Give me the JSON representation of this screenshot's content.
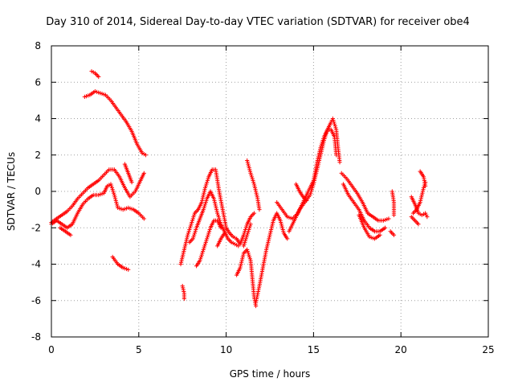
{
  "chart_data": {
    "type": "scatter",
    "title": "Day 310 of 2014, Sidereal Day-to-day VTEC variation (SDTVAR) for receiver obe4",
    "xlabel": "GPS time / hours",
    "ylabel": "SDTVAR / TECUs",
    "xlim": [
      0,
      25
    ],
    "ylim": [
      -8,
      8
    ],
    "x_ticks": [
      0,
      5,
      10,
      15,
      20,
      25
    ],
    "x_tick_labels": [
      "0",
      "5",
      "10",
      "15",
      "20",
      "25"
    ],
    "y_ticks": [
      -8,
      -6,
      -4,
      -2,
      0,
      2,
      4,
      6,
      8
    ],
    "y_tick_labels": [
      "-8",
      "-6",
      "-4",
      "-2",
      "0",
      "2",
      "4",
      "6",
      "8"
    ],
    "grid": true,
    "marker": "+",
    "color": "#ff0000",
    "series_segments": [
      [
        [
          0.0,
          -1.7
        ],
        [
          0.3,
          -1.5
        ],
        [
          0.6,
          -1.3
        ],
        [
          0.9,
          -1.1
        ],
        [
          1.2,
          -0.8
        ],
        [
          1.5,
          -0.4
        ],
        [
          1.8,
          -0.1
        ],
        [
          2.1,
          0.2
        ],
        [
          2.4,
          0.4
        ],
        [
          2.7,
          0.6
        ],
        [
          3.0,
          0.9
        ],
        [
          3.3,
          1.2
        ],
        [
          3.6,
          1.2
        ],
        [
          3.9,
          0.8
        ],
        [
          4.2,
          0.2
        ],
        [
          4.5,
          -0.3
        ],
        [
          4.8,
          0.0
        ],
        [
          5.1,
          0.6
        ],
        [
          5.3,
          1.0
        ]
      ],
      [
        [
          0.0,
          -1.8
        ],
        [
          0.3,
          -1.6
        ],
        [
          0.6,
          -1.8
        ],
        [
          0.9,
          -2.0
        ],
        [
          1.2,
          -1.8
        ],
        [
          1.5,
          -1.2
        ],
        [
          1.8,
          -0.7
        ],
        [
          2.1,
          -0.4
        ],
        [
          2.4,
          -0.2
        ],
        [
          2.7,
          -0.2
        ],
        [
          3.0,
          -0.1
        ],
        [
          3.2,
          0.3
        ],
        [
          3.4,
          0.4
        ],
        [
          3.6,
          -0.2
        ],
        [
          3.8,
          -0.9
        ],
        [
          4.1,
          -1.0
        ],
        [
          4.4,
          -0.9
        ],
        [
          4.7,
          -1.0
        ],
        [
          5.0,
          -1.2
        ],
        [
          5.3,
          -1.5
        ]
      ],
      [
        [
          0.5,
          -2.0
        ],
        [
          0.8,
          -2.2
        ],
        [
          1.1,
          -2.4
        ]
      ],
      [
        [
          1.9,
          5.2
        ],
        [
          2.2,
          5.3
        ],
        [
          2.5,
          5.5
        ],
        [
          2.8,
          5.4
        ],
        [
          3.1,
          5.3
        ],
        [
          3.4,
          5.0
        ],
        [
          3.7,
          4.6
        ],
        [
          4.0,
          4.2
        ],
        [
          4.3,
          3.8
        ],
        [
          4.6,
          3.3
        ],
        [
          4.9,
          2.6
        ],
        [
          5.2,
          2.1
        ],
        [
          5.4,
          2.0
        ]
      ],
      [
        [
          2.3,
          6.6
        ],
        [
          2.5,
          6.5
        ],
        [
          2.7,
          6.3
        ]
      ],
      [
        [
          3.5,
          -3.6
        ],
        [
          3.8,
          -4.0
        ],
        [
          4.1,
          -4.2
        ],
        [
          4.4,
          -4.3
        ]
      ],
      [
        [
          4.2,
          1.5
        ],
        [
          4.4,
          1.0
        ],
        [
          4.6,
          0.5
        ]
      ],
      [
        [
          7.5,
          -5.2
        ],
        [
          7.6,
          -5.6
        ],
        [
          7.6,
          -5.9
        ]
      ],
      [
        [
          7.4,
          -4.0
        ],
        [
          7.6,
          -3.2
        ],
        [
          7.8,
          -2.4
        ],
        [
          8.0,
          -1.8
        ],
        [
          8.2,
          -1.2
        ],
        [
          8.4,
          -1.0
        ],
        [
          8.6,
          -0.6
        ],
        [
          8.8,
          0.2
        ],
        [
          9.0,
          0.8
        ],
        [
          9.2,
          1.2
        ],
        [
          9.4,
          1.2
        ],
        [
          9.6,
          0.0
        ],
        [
          9.8,
          -1.0
        ],
        [
          10.0,
          -2.0
        ],
        [
          10.2,
          -2.3
        ],
        [
          10.4,
          -2.5
        ],
        [
          10.6,
          -2.6
        ],
        [
          10.8,
          -2.9
        ],
        [
          11.0,
          -2.4
        ],
        [
          11.2,
          -1.8
        ],
        [
          11.4,
          -1.4
        ],
        [
          11.6,
          -1.2
        ]
      ],
      [
        [
          7.9,
          -2.8
        ],
        [
          8.1,
          -2.6
        ],
        [
          8.3,
          -2.0
        ],
        [
          8.5,
          -1.5
        ],
        [
          8.7,
          -1.0
        ],
        [
          8.9,
          -0.4
        ],
        [
          9.1,
          0.0
        ],
        [
          9.3,
          -0.4
        ],
        [
          9.5,
          -1.2
        ],
        [
          9.7,
          -1.8
        ],
        [
          9.9,
          -2.2
        ],
        [
          10.1,
          -2.6
        ],
        [
          10.3,
          -2.8
        ],
        [
          10.5,
          -2.9
        ],
        [
          10.7,
          -3.0
        ]
      ],
      [
        [
          8.3,
          -4.1
        ],
        [
          8.5,
          -3.8
        ],
        [
          8.7,
          -3.2
        ],
        [
          8.9,
          -2.6
        ],
        [
          9.1,
          -2.0
        ],
        [
          9.3,
          -1.6
        ],
        [
          9.5,
          -1.6
        ],
        [
          9.7,
          -2.0
        ]
      ],
      [
        [
          9.5,
          -3.0
        ],
        [
          9.7,
          -2.6
        ],
        [
          9.9,
          -2.3
        ]
      ],
      [
        [
          10.6,
          -4.6
        ],
        [
          10.8,
          -4.2
        ],
        [
          11.0,
          -3.4
        ],
        [
          11.2,
          -3.2
        ],
        [
          11.4,
          -3.8
        ],
        [
          11.5,
          -4.8
        ],
        [
          11.6,
          -5.8
        ],
        [
          11.7,
          -6.3
        ]
      ],
      [
        [
          11.7,
          -6.1
        ],
        [
          11.9,
          -5.2
        ],
        [
          12.1,
          -4.2
        ],
        [
          12.3,
          -3.2
        ],
        [
          12.5,
          -2.4
        ],
        [
          12.7,
          -1.6
        ],
        [
          12.9,
          -1.2
        ],
        [
          13.1,
          -1.6
        ],
        [
          13.3,
          -2.3
        ],
        [
          13.5,
          -2.6
        ]
      ],
      [
        [
          11.2,
          1.7
        ],
        [
          11.4,
          1.0
        ],
        [
          11.6,
          0.4
        ],
        [
          11.8,
          -0.4
        ],
        [
          11.9,
          -1.0
        ]
      ],
      [
        [
          11.0,
          -3.0
        ],
        [
          11.2,
          -2.4
        ],
        [
          11.4,
          -1.8
        ]
      ],
      [
        [
          12.9,
          -0.6
        ],
        [
          13.2,
          -1.0
        ],
        [
          13.5,
          -1.4
        ],
        [
          13.8,
          -1.5
        ],
        [
          14.1,
          -1.2
        ],
        [
          14.4,
          -0.6
        ],
        [
          14.7,
          0.0
        ],
        [
          15.0,
          0.6
        ],
        [
          15.2,
          1.6
        ],
        [
          15.4,
          2.4
        ],
        [
          15.6,
          3.0
        ],
        [
          15.8,
          3.4
        ],
        [
          16.0,
          3.4
        ],
        [
          16.2,
          3.0
        ],
        [
          16.3,
          2.0
        ]
      ],
      [
        [
          13.6,
          -2.2
        ],
        [
          13.9,
          -1.6
        ],
        [
          14.2,
          -1.0
        ],
        [
          14.5,
          -0.6
        ],
        [
          14.8,
          -0.2
        ],
        [
          15.0,
          0.4
        ],
        [
          15.2,
          1.2
        ],
        [
          15.4,
          2.0
        ],
        [
          15.6,
          2.8
        ],
        [
          15.8,
          3.4
        ],
        [
          16.0,
          3.8
        ],
        [
          16.1,
          4.0
        ],
        [
          16.3,
          3.4
        ],
        [
          16.4,
          2.4
        ],
        [
          16.5,
          1.6
        ]
      ],
      [
        [
          14.0,
          0.4
        ],
        [
          14.2,
          0.0
        ],
        [
          14.4,
          -0.3
        ],
        [
          14.6,
          -0.5
        ]
      ],
      [
        [
          16.6,
          1.0
        ],
        [
          16.9,
          0.7
        ],
        [
          17.2,
          0.3
        ],
        [
          17.5,
          -0.1
        ],
        [
          17.8,
          -0.6
        ],
        [
          18.1,
          -1.2
        ],
        [
          18.4,
          -1.4
        ],
        [
          18.7,
          -1.6
        ],
        [
          19.0,
          -1.6
        ],
        [
          19.3,
          -1.5
        ]
      ],
      [
        [
          16.7,
          0.4
        ],
        [
          17.0,
          -0.2
        ],
        [
          17.3,
          -0.6
        ],
        [
          17.6,
          -1.0
        ],
        [
          17.9,
          -1.6
        ],
        [
          18.2,
          -2.0
        ],
        [
          18.5,
          -2.2
        ],
        [
          18.8,
          -2.2
        ],
        [
          19.1,
          -2.0
        ]
      ],
      [
        [
          17.6,
          -1.3
        ],
        [
          17.9,
          -2.0
        ],
        [
          18.2,
          -2.5
        ],
        [
          18.5,
          -2.6
        ],
        [
          18.8,
          -2.4
        ]
      ],
      [
        [
          19.5,
          0.0
        ],
        [
          19.6,
          -0.6
        ],
        [
          19.6,
          -1.3
        ]
      ],
      [
        [
          19.4,
          -2.2
        ],
        [
          19.6,
          -2.4
        ]
      ],
      [
        [
          20.6,
          -0.3
        ],
        [
          20.8,
          -0.7
        ],
        [
          21.0,
          -1.2
        ],
        [
          21.2,
          -1.3
        ],
        [
          21.4,
          -1.2
        ],
        [
          21.5,
          -1.4
        ]
      ],
      [
        [
          20.7,
          -1.2
        ],
        [
          20.9,
          -1.0
        ],
        [
          21.1,
          -0.6
        ],
        [
          21.3,
          0.2
        ],
        [
          21.4,
          0.5
        ]
      ],
      [
        [
          21.1,
          1.1
        ],
        [
          21.3,
          0.8
        ],
        [
          21.4,
          0.3
        ]
      ],
      [
        [
          20.6,
          -1.4
        ],
        [
          20.8,
          -1.6
        ],
        [
          21.0,
          -1.8
        ]
      ]
    ]
  }
}
